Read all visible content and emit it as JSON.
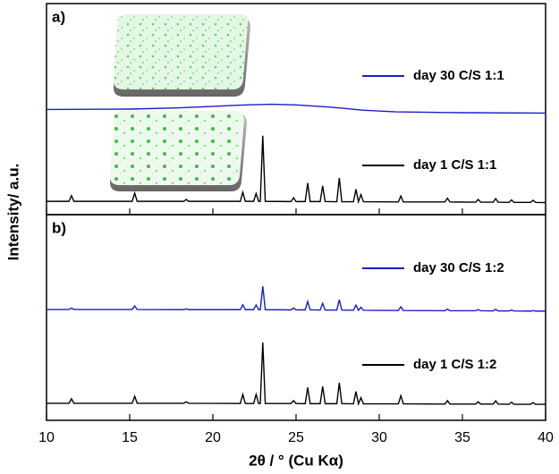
{
  "chart_data": [
    {
      "type": "line",
      "label": "a)",
      "ylabel": "Intensity/ a.u.",
      "xlim": [
        10,
        40
      ],
      "ylim": [
        0,
        100
      ],
      "series": [
        {
          "name": "day 30 C/S 1:1",
          "color": "#1c1ccc",
          "x": [
            10,
            15,
            18,
            20,
            22,
            23.5,
            25,
            27,
            29,
            31,
            35,
            40
          ],
          "values": [
            49.8,
            50,
            50.6,
            51.3,
            52,
            52.3,
            52,
            51,
            49.5,
            48.7,
            48.3,
            48.1
          ]
        },
        {
          "name": "day 1 C/S 1:1",
          "color": "#000000",
          "x": [
            10,
            11.35,
            11.5,
            11.65,
            15.15,
            15.3,
            15.45,
            18.25,
            18.4,
            18.55,
            21.65,
            21.8,
            21.95,
            22.45,
            22.6,
            22.75,
            22.85,
            23.0,
            23.15,
            24.7,
            24.85,
            25.0,
            25.55,
            25.7,
            25.85,
            26.45,
            26.6,
            26.75,
            27.45,
            27.6,
            27.75,
            28.45,
            28.6,
            28.75,
            28.9,
            29.05,
            31.15,
            31.3,
            31.45,
            33.95,
            34.1,
            34.25,
            35.8,
            35.95,
            36.1,
            36.85,
            37.0,
            37.15,
            37.8,
            37.95,
            38.1,
            39.1,
            39.25,
            39.4,
            40
          ],
          "values": [
            6.3,
            6.3,
            9,
            6.3,
            6.3,
            10.2,
            6.3,
            6.3,
            7.2,
            6.3,
            6.3,
            10.6,
            6.3,
            6.3,
            10,
            6.3,
            6.3,
            37.4,
            6.3,
            6.2,
            8,
            6.2,
            6.2,
            15,
            6.2,
            6.2,
            13.6,
            6.2,
            6.1,
            17.4,
            6.1,
            6.1,
            12,
            6.1,
            9.5,
            6.1,
            6,
            8.8,
            6,
            6,
            7.8,
            6,
            5.9,
            7.2,
            5.9,
            5.9,
            7.6,
            5.9,
            5.8,
            7,
            5.8,
            5.8,
            6.8,
            5.8,
            5.7
          ]
        }
      ]
    },
    {
      "type": "line",
      "label": "b)",
      "xlabel": "2θ / ° (Cu Kα)",
      "xlim": [
        10,
        40
      ],
      "ylim": [
        0,
        100
      ],
      "xticks": [
        10,
        15,
        20,
        25,
        30,
        35,
        40
      ],
      "series": [
        {
          "name": "day 30 C/S 1:2",
          "color": "#1c1ccc",
          "x": [
            10,
            11.35,
            11.5,
            11.65,
            15.15,
            15.3,
            15.45,
            18.25,
            18.4,
            18.55,
            21.65,
            21.8,
            21.95,
            22.45,
            22.6,
            22.75,
            22.85,
            23.0,
            23.15,
            24.7,
            24.85,
            25.0,
            25.55,
            25.7,
            25.85,
            26.45,
            26.6,
            26.75,
            27.45,
            27.6,
            27.75,
            28.45,
            28.6,
            28.75,
            28.9,
            29.05,
            31.15,
            31.3,
            31.45,
            33.95,
            34.1,
            34.25,
            35.8,
            35.95,
            36.1,
            36.85,
            37.0,
            37.15,
            37.8,
            37.95,
            38.1,
            39.1,
            39.25,
            39.4,
            40
          ],
          "values": [
            53.9,
            53.9,
            54.6,
            53.9,
            53.9,
            55.6,
            53.9,
            53.8,
            54.2,
            53.8,
            53.8,
            56.2,
            53.8,
            53.8,
            56.1,
            53.8,
            53.8,
            65.2,
            53.8,
            53.7,
            54.6,
            53.7,
            53.7,
            57.8,
            53.7,
            53.6,
            56.9,
            53.6,
            53.6,
            58.6,
            53.6,
            53.5,
            56,
            53.5,
            55,
            53.5,
            53.4,
            55.2,
            53.4,
            53.3,
            54.1,
            53.3,
            53.3,
            53.8,
            53.3,
            53.2,
            54,
            53.2,
            53.2,
            53.6,
            53.2,
            53.1,
            53.4,
            53.1,
            53.1
          ]
        },
        {
          "name": "day 1 C/S 1:2",
          "color": "#000000",
          "x": [
            10,
            11.35,
            11.5,
            11.65,
            15.15,
            15.3,
            15.45,
            18.25,
            18.4,
            18.55,
            21.65,
            21.8,
            21.95,
            22.45,
            22.6,
            22.75,
            22.85,
            23.0,
            23.15,
            24.7,
            24.85,
            25.0,
            25.55,
            25.7,
            25.85,
            26.45,
            26.6,
            26.75,
            27.45,
            27.6,
            27.75,
            28.45,
            28.6,
            28.75,
            28.9,
            29.05,
            31.15,
            31.3,
            31.45,
            33.95,
            34.1,
            34.25,
            35.8,
            35.95,
            36.1,
            36.85,
            37.0,
            37.15,
            37.8,
            37.95,
            38.1,
            39.1,
            39.25,
            39.4,
            40
          ],
          "values": [
            8.3,
            8.3,
            10.5,
            8.3,
            8.3,
            11.7,
            8.3,
            8.3,
            9,
            8.3,
            8.2,
            12.6,
            8.2,
            8.2,
            12.6,
            8.2,
            8.2,
            37.8,
            8.2,
            8.2,
            9.6,
            8.2,
            8.1,
            16,
            8.1,
            8.1,
            16.5,
            8.1,
            8.1,
            18.3,
            8.1,
            8.0,
            14,
            8.0,
            11,
            8.0,
            8.0,
            12,
            8.0,
            7.9,
            9.6,
            7.9,
            7.9,
            9,
            7.9,
            7.9,
            9.5,
            7.9,
            7.8,
            8.8,
            7.8,
            7.8,
            8.6,
            7.8,
            7.8
          ]
        }
      ]
    }
  ]
}
